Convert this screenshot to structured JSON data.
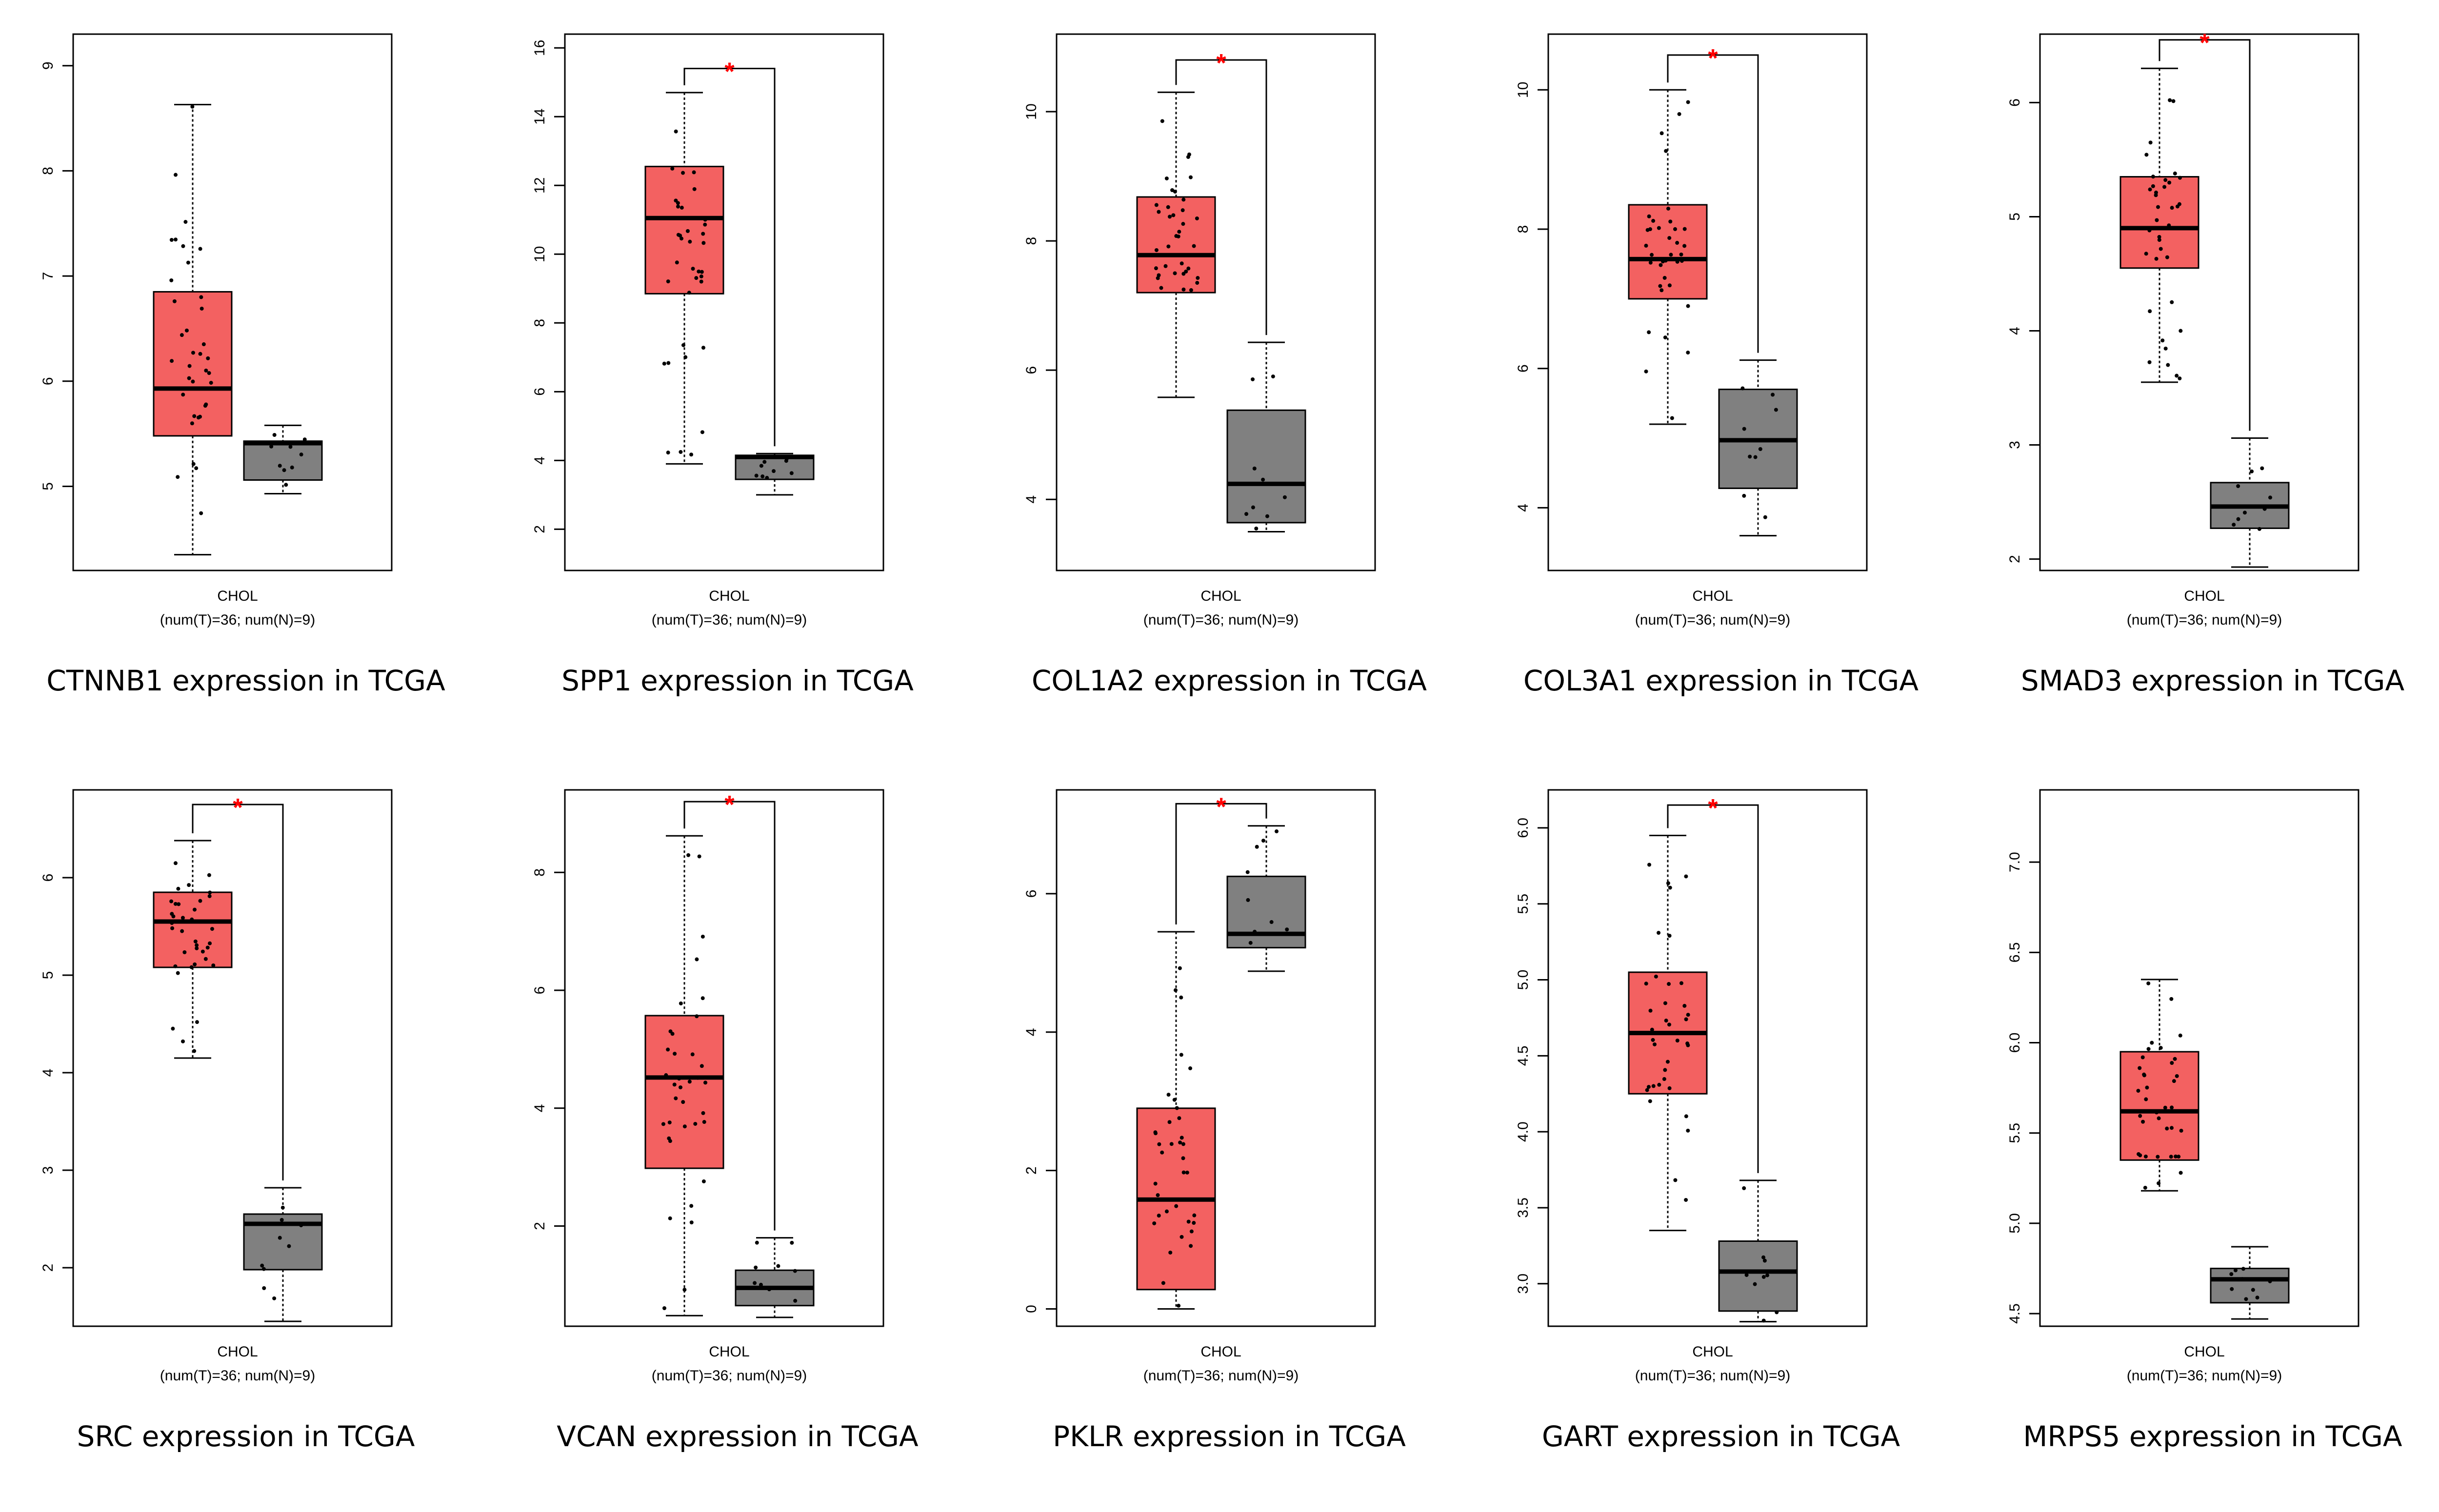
{
  "colors": {
    "tumor": "#f36161",
    "normal": "#808080",
    "significance": "#ff0000"
  },
  "chart_data": [
    {
      "type": "box",
      "gene": "CTNNB1",
      "caption": "CTNNB1 expression in TCGA",
      "xlabel": "CHOL",
      "sublabel": "(num(T)=36; num(N)=9)",
      "ylim": [
        4.2,
        9.3
      ],
      "yticks": [
        5,
        6,
        7,
        8,
        9
      ],
      "significant": false,
      "bracket_top": 9.0,
      "tumor": {
        "min": 4.35,
        "q1": 5.48,
        "median": 5.93,
        "q3": 6.85,
        "max": 8.63
      },
      "normal": {
        "min": 4.93,
        "q1": 5.06,
        "median": 5.41,
        "q3": 5.43,
        "max": 5.58
      }
    },
    {
      "type": "box",
      "gene": "SPP1",
      "caption": "SPP1 expression in TCGA",
      "xlabel": "CHOL",
      "sublabel": "(num(T)=36; num(N)=9)",
      "ylim": [
        0.8,
        16.4
      ],
      "yticks": [
        2,
        4,
        6,
        8,
        10,
        12,
        14,
        16
      ],
      "significant": true,
      "bracket_top": 15.4,
      "tumor": {
        "min": 3.9,
        "q1": 8.85,
        "median": 11.05,
        "q3": 12.55,
        "max": 14.7
      },
      "normal": {
        "min": 3.0,
        "q1": 3.45,
        "median": 4.1,
        "q3": 4.15,
        "max": 4.2
      }
    },
    {
      "type": "box",
      "gene": "COL1A2",
      "caption": "COL1A2 expression in TCGA",
      "xlabel": "CHOL",
      "sublabel": "(num(T)=36; num(N)=9)",
      "ylim": [
        2.9,
        11.2
      ],
      "yticks": [
        4,
        6,
        8,
        10
      ],
      "significant": true,
      "bracket_top": 10.8,
      "tumor": {
        "min": 5.58,
        "q1": 7.2,
        "median": 7.78,
        "q3": 8.68,
        "max": 10.3
      },
      "normal": {
        "min": 3.5,
        "q1": 3.64,
        "median": 4.24,
        "q3": 5.38,
        "max": 6.43
      }
    },
    {
      "type": "box",
      "gene": "COL3A1",
      "caption": "COL3A1 expression in TCGA",
      "xlabel": "CHOL",
      "sublabel": "(num(T)=36; num(N)=9)",
      "ylim": [
        3.1,
        10.8
      ],
      "yticks": [
        4,
        6,
        8,
        10
      ],
      "significant": true,
      "bracket_top": 10.5,
      "tumor": {
        "min": 5.2,
        "q1": 7.0,
        "median": 7.57,
        "q3": 8.35,
        "max": 10.0
      },
      "normal": {
        "min": 3.6,
        "q1": 4.28,
        "median": 4.97,
        "q3": 5.7,
        "max": 6.12
      }
    },
    {
      "type": "box",
      "gene": "SMAD3",
      "caption": "SMAD3 expression in TCGA",
      "xlabel": "CHOL",
      "sublabel": "(num(T)=36; num(N)=9)",
      "ylim": [
        1.9,
        6.6
      ],
      "yticks": [
        2,
        3,
        4,
        5,
        6
      ],
      "significant": true,
      "bracket_top": 6.55,
      "tumor": {
        "min": 3.55,
        "q1": 4.55,
        "median": 4.9,
        "q3": 5.35,
        "max": 6.3
      },
      "normal": {
        "min": 1.93,
        "q1": 2.27,
        "median": 2.46,
        "q3": 2.67,
        "max": 3.06
      }
    },
    {
      "type": "box",
      "gene": "SRC",
      "caption": "SRC expression in TCGA",
      "xlabel": "CHOL",
      "sublabel": "(num(T)=36; num(N)=9)",
      "ylim": [
        1.4,
        6.9
      ],
      "yticks": [
        2,
        3,
        4,
        5,
        6
      ],
      "significant": true,
      "bracket_top": 6.75,
      "tumor": {
        "min": 4.15,
        "q1": 5.08,
        "median": 5.55,
        "q3": 5.85,
        "max": 6.38
      },
      "normal": {
        "min": 1.45,
        "q1": 1.98,
        "median": 2.45,
        "q3": 2.55,
        "max": 2.82
      }
    },
    {
      "type": "box",
      "gene": "VCAN",
      "caption": "VCAN expression in TCGA",
      "xlabel": "CHOL",
      "sublabel": "(num(T)=36; num(N)=9)",
      "ylim": [
        0.3,
        9.4
      ],
      "yticks": [
        2,
        4,
        6,
        8
      ],
      "significant": true,
      "bracket_top": 9.2,
      "tumor": {
        "min": 0.48,
        "q1": 2.98,
        "median": 4.52,
        "q3": 5.57,
        "max": 8.62
      },
      "normal": {
        "min": 0.45,
        "q1": 0.65,
        "median": 0.95,
        "q3": 1.25,
        "max": 1.8
      }
    },
    {
      "type": "box",
      "gene": "PKLR",
      "caption": "PKLR expression in TCGA",
      "xlabel": "CHOL",
      "sublabel": "(num(T)=36; num(N)=9)",
      "ylim": [
        -0.25,
        7.5
      ],
      "yticks": [
        0,
        2,
        4,
        6
      ],
      "significant": true,
      "bracket_top": 7.3,
      "tumor": {
        "min": 0.0,
        "q1": 0.28,
        "median": 1.58,
        "q3": 2.9,
        "max": 5.45
      },
      "normal": {
        "min": 4.88,
        "q1": 5.22,
        "median": 5.42,
        "q3": 6.25,
        "max": 6.98
      }
    },
    {
      "type": "box",
      "gene": "GART",
      "caption": "GART expression in TCGA",
      "xlabel": "CHOL",
      "sublabel": "(num(T)=36; num(N)=9)",
      "ylim": [
        2.72,
        6.25
      ],
      "yticks": [
        3.0,
        3.5,
        4.0,
        4.5,
        5.0,
        5.5,
        6.0
      ],
      "significant": true,
      "bracket_top": 6.15,
      "tumor": {
        "min": 3.35,
        "q1": 4.25,
        "median": 4.65,
        "q3": 5.05,
        "max": 5.95
      },
      "normal": {
        "min": 2.75,
        "q1": 2.82,
        "median": 3.08,
        "q3": 3.28,
        "max": 3.68
      }
    },
    {
      "type": "box",
      "gene": "MRPS5",
      "caption": "MRPS5 expression in TCGA",
      "xlabel": "CHOL",
      "sublabel": "(num(T)=36; num(N)=9)",
      "ylim": [
        4.43,
        7.4
      ],
      "yticks": [
        4.5,
        5.0,
        5.5,
        6.0,
        6.5,
        7.0
      ],
      "significant": false,
      "bracket_top": 7.2,
      "tumor": {
        "min": 5.18,
        "q1": 5.35,
        "median": 5.62,
        "q3": 5.95,
        "max": 6.35
      },
      "normal": {
        "min": 4.47,
        "q1": 4.56,
        "median": 4.69,
        "q3": 4.75,
        "max": 4.87
      }
    }
  ]
}
